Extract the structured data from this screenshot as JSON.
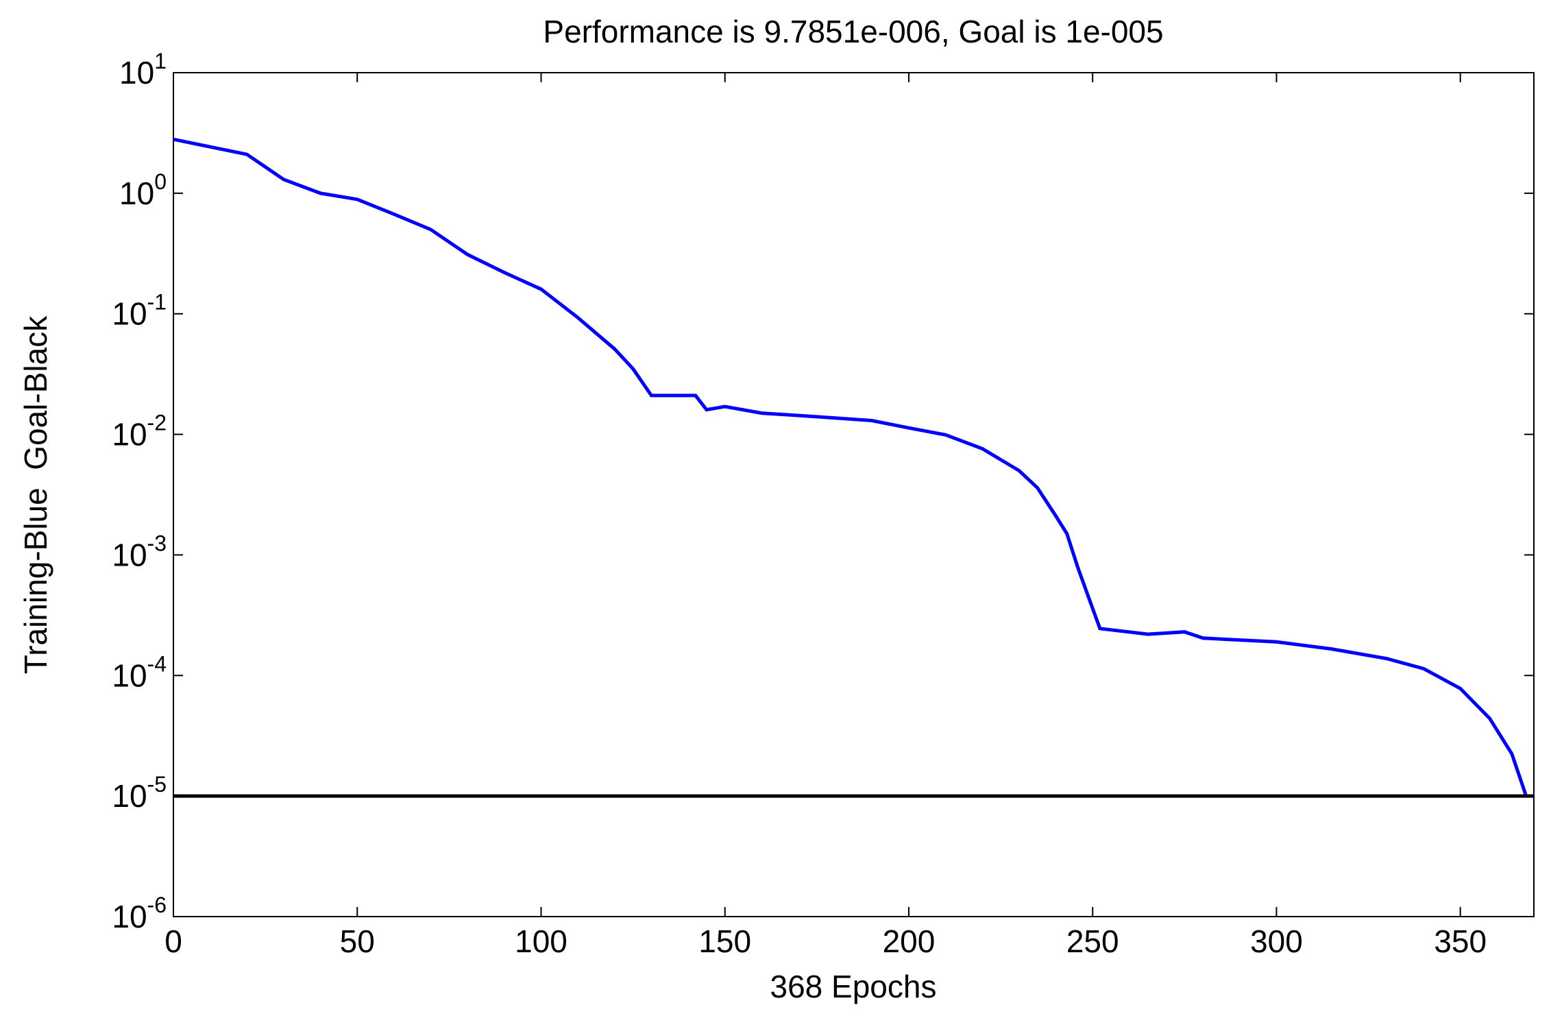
{
  "chart_data": {
    "type": "line",
    "title": "Performance is 9.7851e-006, Goal is 1e-005",
    "xlabel": "368 Epochs",
    "ylabel": "Training-Blue  Goal-Black",
    "log_y": true,
    "xlim": [
      0,
      370
    ],
    "xticks": [
      0,
      50,
      100,
      150,
      200,
      250,
      300,
      350
    ],
    "ylim": [
      1e-06,
      10
    ],
    "yticks": [
      {
        "value": 1e-06,
        "label": "10^-6"
      },
      {
        "value": 1e-05,
        "label": "10^-5"
      },
      {
        "value": 0.0001,
        "label": "10^-4"
      },
      {
        "value": 0.001,
        "label": "10^-3"
      },
      {
        "value": 0.01,
        "label": "10^-2"
      },
      {
        "value": 0.1,
        "label": "10^-1"
      },
      {
        "value": 1,
        "label": "10^0"
      },
      {
        "value": 10,
        "label": "10^1"
      }
    ],
    "series": [
      {
        "color": "#0000ff",
        "x": [
          0,
          20,
          30,
          40,
          50,
          60,
          70,
          80,
          90,
          100,
          110,
          120,
          125,
          130,
          142,
          145,
          150,
          160,
          175,
          190,
          200,
          210,
          220,
          230,
          235,
          240,
          243,
          246,
          250,
          252,
          265,
          275,
          280,
          300,
          315,
          330,
          340,
          350,
          358,
          364,
          368
        ],
        "values": [
          2.8,
          2.1,
          1.3,
          1.0,
          0.89,
          0.67,
          0.5,
          0.31,
          0.22,
          0.16,
          0.093,
          0.051,
          0.035,
          0.021,
          0.021,
          0.016,
          0.017,
          0.015,
          0.014,
          0.013,
          0.0113,
          0.0099,
          0.0076,
          0.005,
          0.0036,
          0.0021,
          0.0015,
          0.00078,
          0.00036,
          0.000245,
          0.00022,
          0.00023,
          0.000204,
          0.00019,
          0.000166,
          0.000138,
          0.000114,
          7.8e-05,
          4.4e-05,
          2.24e-05,
          9.7851e-06
        ]
      },
      {
        "color": "#000000",
        "x": [
          0,
          370
        ],
        "values": [
          1e-05,
          1e-05
        ]
      }
    ]
  }
}
